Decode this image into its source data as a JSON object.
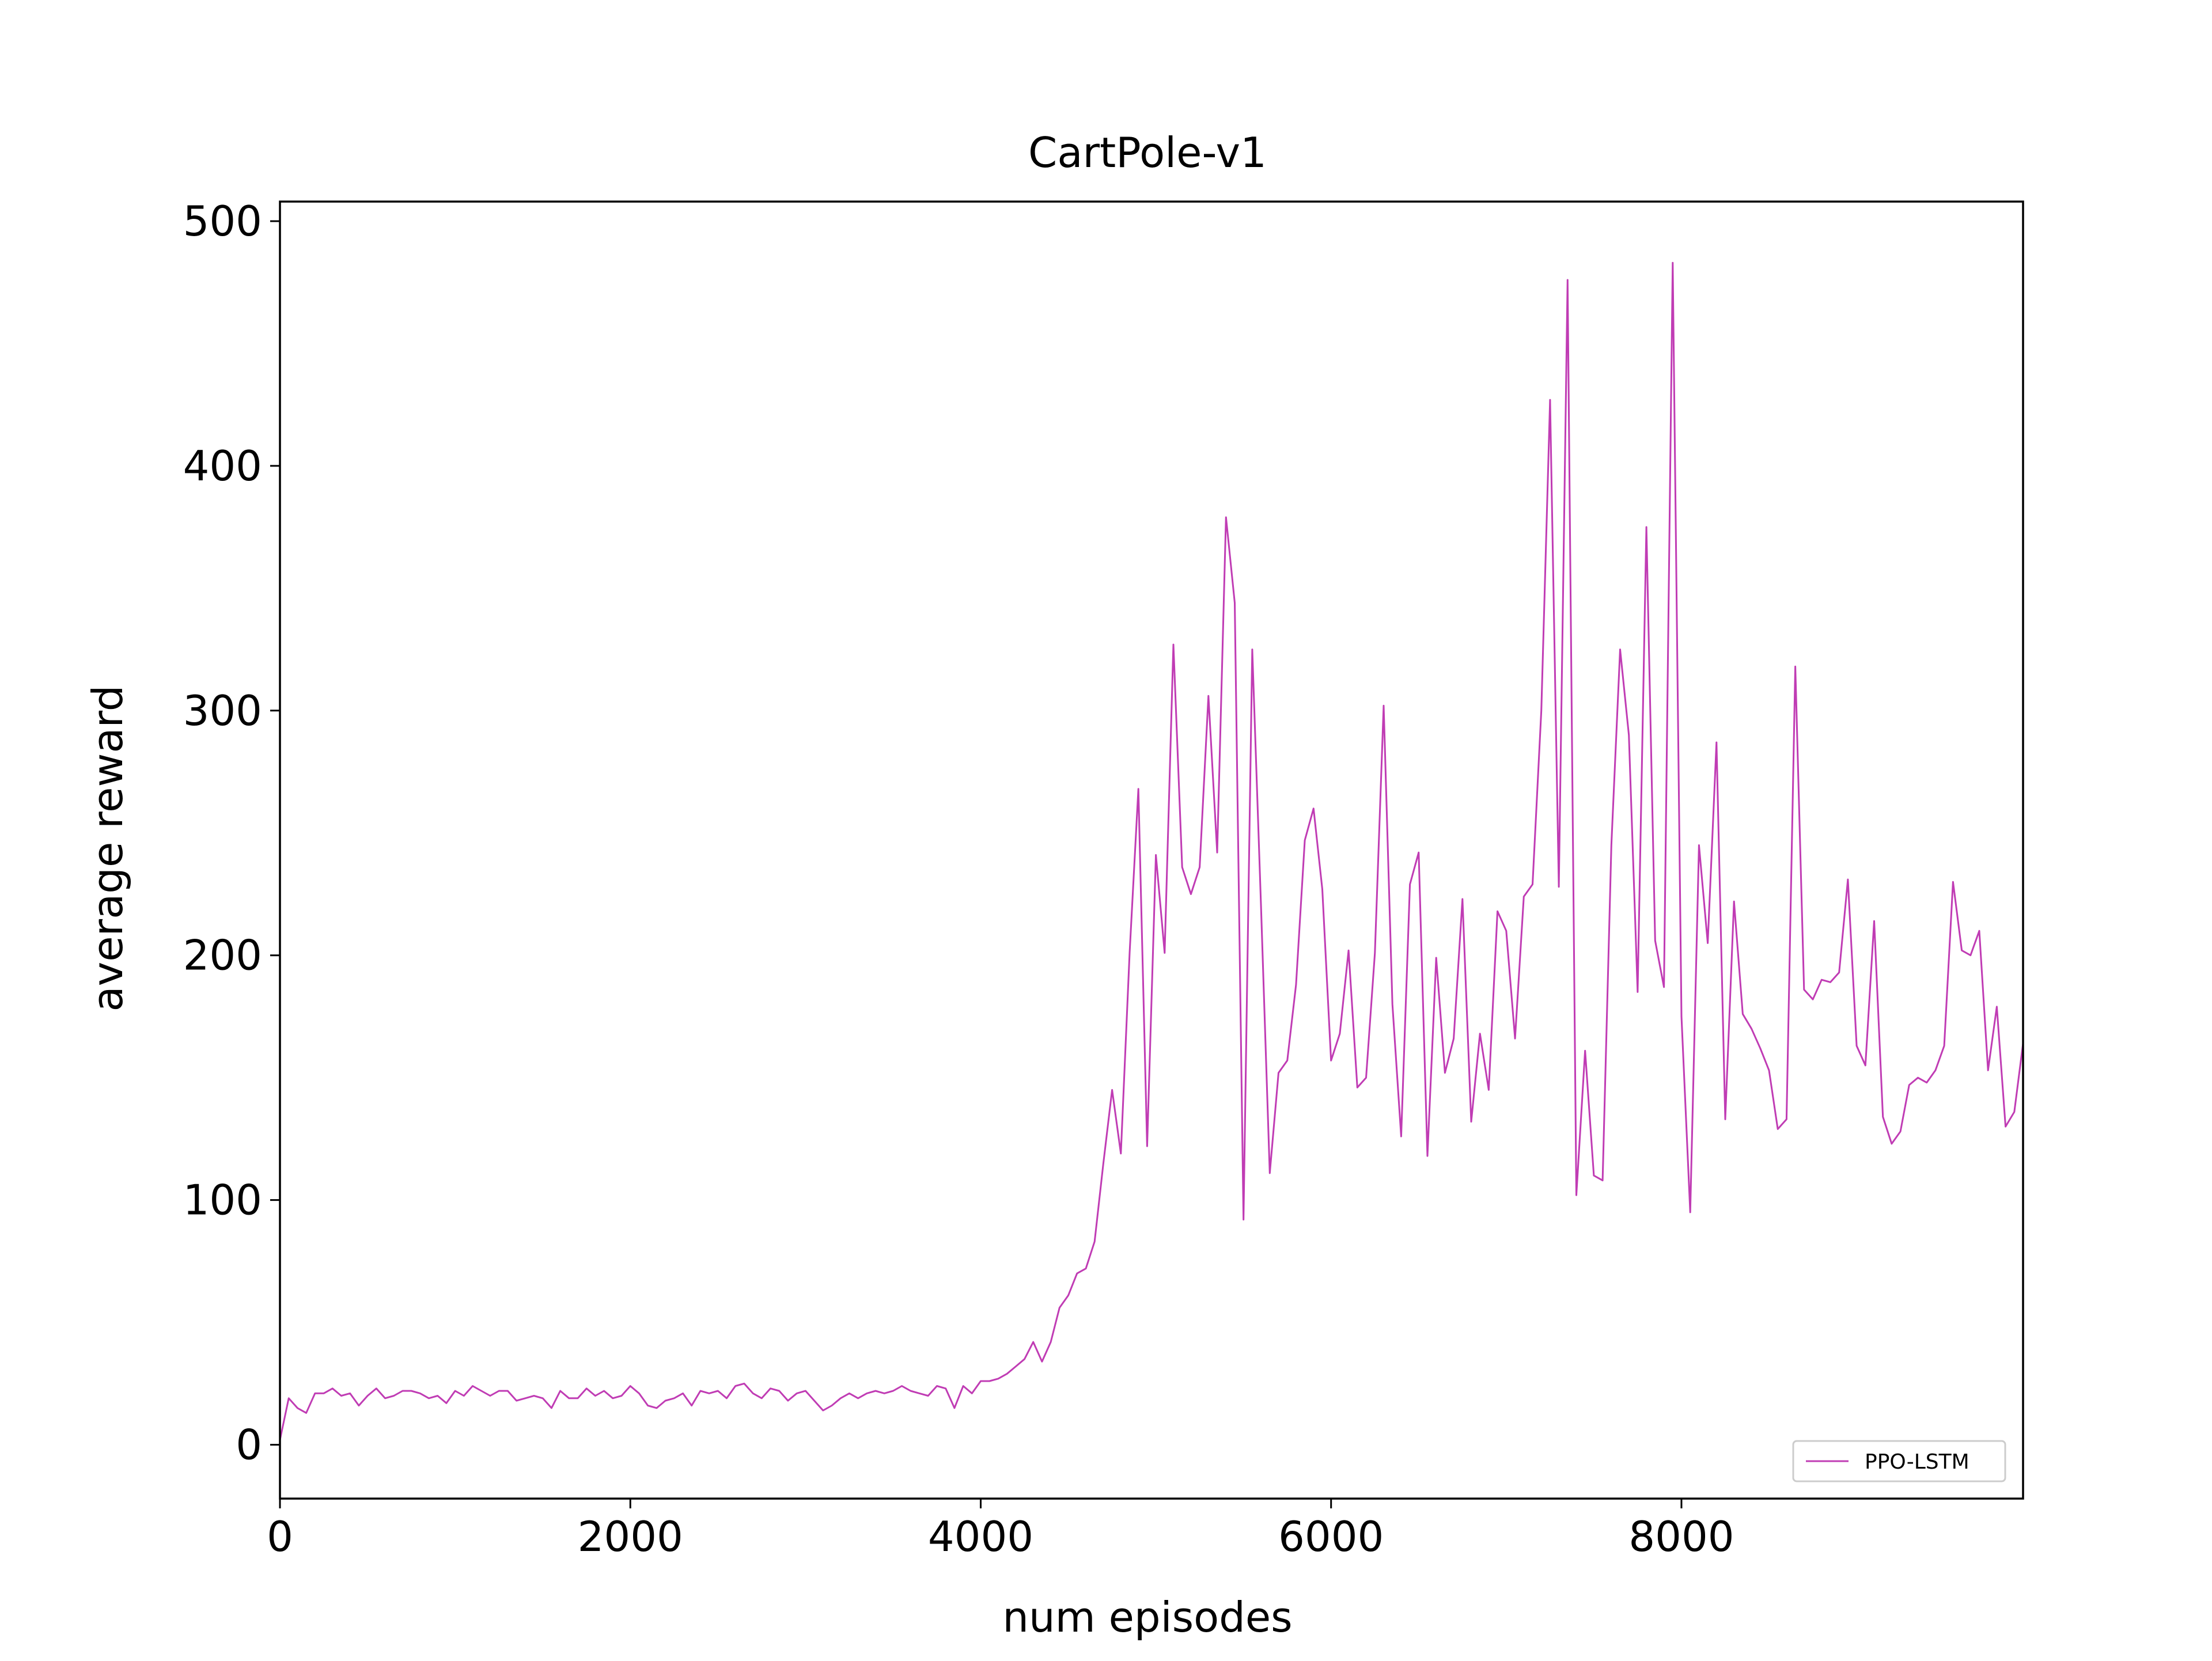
{
  "chart_data": {
    "type": "line",
    "title": "CartPole-v1",
    "xlabel": "num episodes",
    "ylabel": "average reward",
    "xlim": [
      0,
      9950
    ],
    "ylim": [
      -22,
      508
    ],
    "xticks": [
      0,
      2000,
      4000,
      6000,
      8000
    ],
    "yticks": [
      0,
      100,
      200,
      300,
      400,
      500
    ],
    "xtick_labels": [
      "0",
      "2000",
      "4000",
      "6000",
      "8000"
    ],
    "ytick_labels": [
      "0",
      "100",
      "200",
      "300",
      "400",
      "500"
    ],
    "grid": false,
    "legend_position": "lower-right",
    "series": [
      {
        "name": "PPO-LSTM",
        "color": "#c03cb4",
        "x": [
          0,
          50,
          100,
          150,
          200,
          250,
          300,
          350,
          400,
          450,
          500,
          550,
          600,
          650,
          700,
          750,
          800,
          850,
          900,
          950,
          1000,
          1050,
          1100,
          1150,
          1200,
          1250,
          1300,
          1350,
          1400,
          1450,
          1500,
          1550,
          1600,
          1650,
          1700,
          1750,
          1800,
          1850,
          1900,
          1950,
          2000,
          2050,
          2100,
          2150,
          2200,
          2250,
          2300,
          2350,
          2400,
          2450,
          2500,
          2550,
          2600,
          2650,
          2700,
          2750,
          2800,
          2850,
          2900,
          2950,
          3000,
          3050,
          3100,
          3150,
          3200,
          3250,
          3300,
          3350,
          3400,
          3450,
          3500,
          3550,
          3600,
          3650,
          3700,
          3750,
          3800,
          3850,
          3900,
          3950,
          4000,
          4050,
          4100,
          4150,
          4200,
          4250,
          4300,
          4350,
          4400,
          4450,
          4500,
          4550,
          4600,
          4650,
          4700,
          4750,
          4800,
          4850,
          4900,
          4950,
          5000,
          5050,
          5100,
          5150,
          5200,
          5250,
          5300,
          5350,
          5400,
          5450,
          5500,
          5550,
          5600,
          5650,
          5700,
          5750,
          5800,
          5850,
          5900,
          5950,
          6000,
          6050,
          6100,
          6150,
          6200,
          6250,
          6300,
          6350,
          6400,
          6450,
          6500,
          6550,
          6600,
          6650,
          6700,
          6750,
          6800,
          6850,
          6900,
          6950,
          7000,
          7050,
          7100,
          7150,
          7200,
          7250,
          7300,
          7350,
          7400,
          7450,
          7500,
          7550,
          7600,
          7650,
          7700,
          7750,
          7800,
          7850,
          7900,
          7950,
          8000,
          8050,
          8100,
          8150,
          8200,
          8250,
          8300,
          8350,
          8400,
          8450,
          8500,
          8550,
          8600,
          8650,
          8700,
          8750,
          8800,
          8850,
          8900,
          8950,
          9000,
          9050,
          9100,
          9150,
          9200,
          9250,
          9300,
          9350,
          9400,
          9450,
          9500,
          9550,
          9600,
          9650,
          9700,
          9750,
          9800,
          9850,
          9900,
          9950
        ],
        "y": [
          2,
          19,
          15,
          13,
          21,
          21,
          23,
          20,
          21,
          16,
          20,
          23,
          19,
          20,
          22,
          22,
          21,
          19,
          20,
          17,
          22,
          20,
          24,
          22,
          20,
          22,
          22,
          18,
          19,
          20,
          19,
          15,
          22,
          19,
          19,
          23,
          20,
          22,
          19,
          20,
          24,
          21,
          16,
          15,
          18,
          19,
          21,
          16,
          22,
          21,
          22,
          19,
          24,
          25,
          21,
          19,
          23,
          22,
          18,
          21,
          22,
          18,
          14,
          16,
          19,
          21,
          19,
          21,
          22,
          21,
          22,
          24,
          22,
          21,
          20,
          24,
          23,
          15,
          24,
          21,
          26,
          26,
          27,
          29,
          32,
          35,
          42,
          34,
          42,
          56,
          61,
          70,
          72,
          83,
          115,
          145,
          119,
          201,
          268,
          122,
          241,
          201,
          327,
          236,
          225,
          236,
          306,
          242,
          379,
          344,
          92,
          325,
          220,
          111,
          152,
          157,
          188,
          247,
          260,
          227,
          157,
          168,
          202,
          146,
          150,
          201,
          302,
          180,
          126,
          229,
          242,
          118,
          199,
          152,
          166,
          223,
          132,
          168,
          145,
          218,
          210,
          166,
          224,
          229,
          300,
          427,
          228,
          476,
          102,
          161,
          110,
          108,
          245,
          325,
          290,
          185,
          375,
          206,
          187,
          483,
          175,
          95,
          245,
          205,
          287,
          133,
          222,
          176,
          170,
          162,
          153,
          129,
          133,
          318,
          186,
          182,
          190,
          189,
          193,
          231,
          163,
          155,
          214,
          134,
          123,
          128,
          147,
          150,
          148,
          153,
          163,
          230,
          202,
          200,
          210,
          153,
          179,
          130,
          136,
          164
        ]
      }
    ]
  }
}
